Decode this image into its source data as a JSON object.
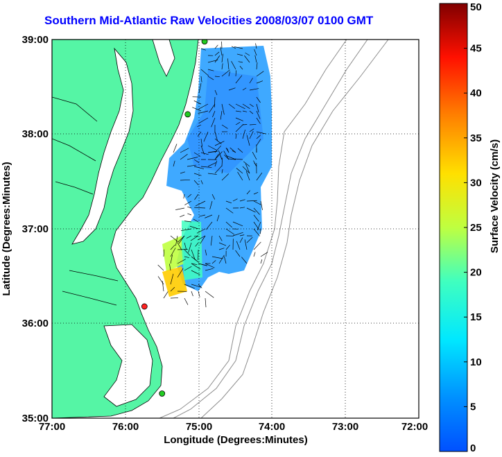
{
  "title": "Southern Mid-Atlantic Raw Velocities 2008/03/07 0100 GMT",
  "x_axis": {
    "label": "Longitude (Degrees:Minutes)",
    "ticks": [
      "77:00",
      "76:00",
      "75:00",
      "74:00",
      "73:00",
      "72:00"
    ]
  },
  "y_axis": {
    "label": "Latitude (Degrees:Minutes)",
    "ticks": [
      "39:00",
      "38:00",
      "37:00",
      "36:00",
      "35:00"
    ]
  },
  "colorbar": {
    "label": "Surface Velocity (cm/s)",
    "min": 0,
    "max": 50,
    "ticks": [
      "50",
      "45",
      "40",
      "35",
      "30",
      "25",
      "20",
      "15",
      "10",
      "5",
      "0"
    ],
    "colormap": "jet"
  },
  "map": {
    "lon_range": [
      -77,
      -72
    ],
    "lat_range": [
      35,
      39
    ],
    "land_color": "#55f5a5",
    "water_color": "#ffffff",
    "bathymetry_color": "#8c8c8c",
    "grid": "dotted"
  },
  "stations": [
    {
      "lon": -74.92,
      "lat": 38.98,
      "status_color": "#22cc22"
    },
    {
      "lon": -75.15,
      "lat": 38.21,
      "status_color": "#22cc22"
    },
    {
      "lon": -75.74,
      "lat": 36.18,
      "status_color": "#ff2222"
    },
    {
      "lon": -75.5,
      "lat": 35.26,
      "status_color": "#22cc22"
    }
  ]
}
